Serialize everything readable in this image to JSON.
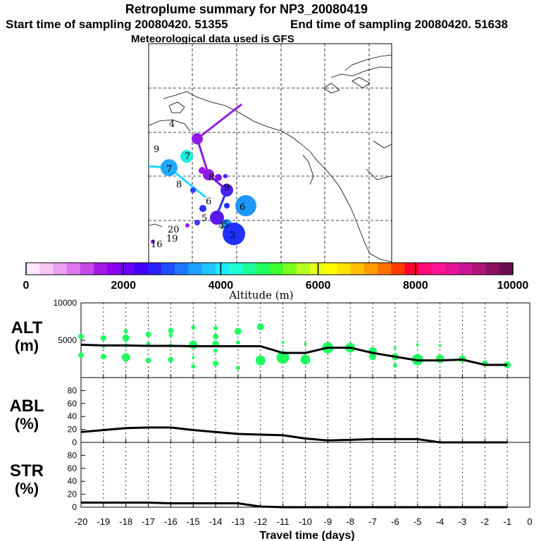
{
  "title": "Retroplume summary for NP3_20080419",
  "start_text": "Start time of sampling 20080420. 51355",
  "end_text": "End time of sampling 20080420. 51638",
  "met_text": "Meteorological data used is GFS",
  "colorbar": {
    "label": "Altitude (m)",
    "ticks": [
      "0",
      "2000",
      "4000",
      "6000",
      "8000",
      "10000"
    ],
    "colors": [
      "#ffe6ff",
      "#f5c6f5",
      "#eba0f0",
      "#dc78ee",
      "#c44ae6",
      "#a318e8",
      "#8c00f0",
      "#6a00f4",
      "#4000f8",
      "#2a20ff",
      "#1e50ff",
      "#1e78ff",
      "#1ea0ff",
      "#1ec8ff",
      "#1ee8ff",
      "#1effd8",
      "#1eff9a",
      "#1eff60",
      "#3cff30",
      "#78ff1e",
      "#b4ff1e",
      "#e6ff1e",
      "#ffff00",
      "#ffe000",
      "#ffc000",
      "#ff9c00",
      "#ff7000",
      "#ff3c00",
      "#ff0028",
      "#ff0a78",
      "#ff1496",
      "#e61496",
      "#cc1496",
      "#b01478",
      "#8c1060",
      "#6a1050"
    ]
  },
  "map_labels": [
    "4",
    "9",
    "7",
    "7",
    "8",
    "6",
    "6",
    "8",
    "9",
    "5",
    "5",
    "4",
    "3",
    "20",
    "19",
    "16"
  ],
  "chart_data": [
    {
      "type": "scatter",
      "name": "ALT",
      "ylabel": "ALT (m)",
      "ylabel_line1": "ALT",
      "ylabel_line2": "(m)",
      "ylim": [
        0,
        10000
      ],
      "yticks": [
        "10000",
        "5000"
      ],
      "x": [
        -20,
        -19,
        -18,
        -17,
        -16,
        -15,
        -14,
        -13,
        -12,
        -11,
        -10,
        -9,
        -8,
        -7,
        -6,
        -5,
        -4,
        -3,
        -2,
        -1
      ],
      "mean_line": [
        4400,
        4300,
        4300,
        4250,
        4250,
        4200,
        4200,
        4200,
        4200,
        3300,
        3300,
        4000,
        4000,
        3300,
        2800,
        2300,
        2300,
        2400,
        1700,
        1700
      ],
      "points": [
        {
          "x": -20,
          "y": 5500,
          "r": 4
        },
        {
          "x": -20,
          "y": 3000,
          "r": 4
        },
        {
          "x": -19,
          "y": 5300,
          "r": 4
        },
        {
          "x": -19,
          "y": 4100,
          "r": 2
        },
        {
          "x": -19,
          "y": 2800,
          "r": 4
        },
        {
          "x": -18,
          "y": 6200,
          "r": 3
        },
        {
          "x": -18,
          "y": 5300,
          "r": 5
        },
        {
          "x": -18,
          "y": 4300,
          "r": 3
        },
        {
          "x": -18,
          "y": 2700,
          "r": 6
        },
        {
          "x": -17,
          "y": 5800,
          "r": 4
        },
        {
          "x": -17,
          "y": 4500,
          "r": 3
        },
        {
          "x": -17,
          "y": 2300,
          "r": 4
        },
        {
          "x": -16,
          "y": 6300,
          "r": 4
        },
        {
          "x": -16,
          "y": 5700,
          "r": 3
        },
        {
          "x": -16,
          "y": 4300,
          "r": 3
        },
        {
          "x": -16,
          "y": 2400,
          "r": 4
        },
        {
          "x": -15,
          "y": 6700,
          "r": 3
        },
        {
          "x": -15,
          "y": 4400,
          "r": 6
        },
        {
          "x": -15,
          "y": 2700,
          "r": 2
        },
        {
          "x": -15,
          "y": 1500,
          "r": 3
        },
        {
          "x": -14,
          "y": 6600,
          "r": 3
        },
        {
          "x": -14,
          "y": 5500,
          "r": 4
        },
        {
          "x": -14,
          "y": 4500,
          "r": 5
        },
        {
          "x": -14,
          "y": 3600,
          "r": 3
        },
        {
          "x": -14,
          "y": 1900,
          "r": 4
        },
        {
          "x": -13,
          "y": 6200,
          "r": 5
        },
        {
          "x": -13,
          "y": 4700,
          "r": 3
        },
        {
          "x": -13,
          "y": 1300,
          "r": 3
        },
        {
          "x": -12,
          "y": 6800,
          "r": 5
        },
        {
          "x": -12,
          "y": 2300,
          "r": 7
        },
        {
          "x": -11,
          "y": 4700,
          "r": 2
        },
        {
          "x": -11,
          "y": 2700,
          "r": 9
        },
        {
          "x": -10,
          "y": 4500,
          "r": 2
        },
        {
          "x": -10,
          "y": 2400,
          "r": 7
        },
        {
          "x": -9,
          "y": 4000,
          "r": 8
        },
        {
          "x": -8,
          "y": 4000,
          "r": 7
        },
        {
          "x": -7,
          "y": 3500,
          "r": 6
        },
        {
          "x": -7,
          "y": 2800,
          "r": 5
        },
        {
          "x": -6,
          "y": 4000,
          "r": 2
        },
        {
          "x": -6,
          "y": 2800,
          "r": 5
        },
        {
          "x": -6,
          "y": 1600,
          "r": 3
        },
        {
          "x": -5,
          "y": 4400,
          "r": 2
        },
        {
          "x": -5,
          "y": 2400,
          "r": 8
        },
        {
          "x": -4,
          "y": 4300,
          "r": 2
        },
        {
          "x": -4,
          "y": 2500,
          "r": 6
        },
        {
          "x": -3,
          "y": 2500,
          "r": 5
        },
        {
          "x": -2,
          "y": 1900,
          "r": 4
        },
        {
          "x": -1,
          "y": 1700,
          "r": 5
        }
      ]
    },
    {
      "type": "line",
      "name": "ABL",
      "ylabel_line1": "ABL",
      "ylabel_line2": "(%)",
      "ylim": [
        0,
        100
      ],
      "yticks": [
        "80",
        "60",
        "40",
        "20",
        "0"
      ],
      "x": [
        -20,
        -19,
        -18,
        -17,
        -16,
        -15,
        -14,
        -13,
        -12,
        -11,
        -10,
        -9,
        -8,
        -7,
        -6,
        -5,
        -4,
        -3,
        -2,
        -1
      ],
      "values": [
        16,
        19,
        22,
        23,
        23,
        19,
        16,
        13,
        12,
        11,
        6,
        3,
        4,
        5,
        5,
        5,
        0,
        0,
        0,
        0
      ]
    },
    {
      "type": "line",
      "name": "STR",
      "ylabel_line1": "STR",
      "ylabel_line2": "(%)",
      "ylim": [
        0,
        100
      ],
      "yticks": [
        "80",
        "60",
        "40",
        "20",
        "0"
      ],
      "x": [
        -20,
        -19,
        -18,
        -17,
        -16,
        -15,
        -14,
        -13,
        -12,
        -11,
        -10,
        -9,
        -8,
        -7,
        -6,
        -5,
        -4,
        -3,
        -2,
        -1
      ],
      "values": [
        7,
        7,
        7,
        7,
        6,
        6,
        6,
        6,
        1,
        0,
        0,
        0,
        0,
        0,
        0,
        0,
        0,
        0,
        0,
        0
      ]
    }
  ],
  "xaxis": {
    "label": "Travel time (days)",
    "ticks": [
      "-20",
      "-19",
      "-18",
      "-17",
      "-16",
      "-15",
      "-14",
      "-13",
      "-12",
      "-11",
      "-10",
      "-9",
      "-8",
      "-7",
      "-6",
      "-5",
      "-4",
      "-3",
      "-2",
      "-1",
      "0"
    ]
  }
}
